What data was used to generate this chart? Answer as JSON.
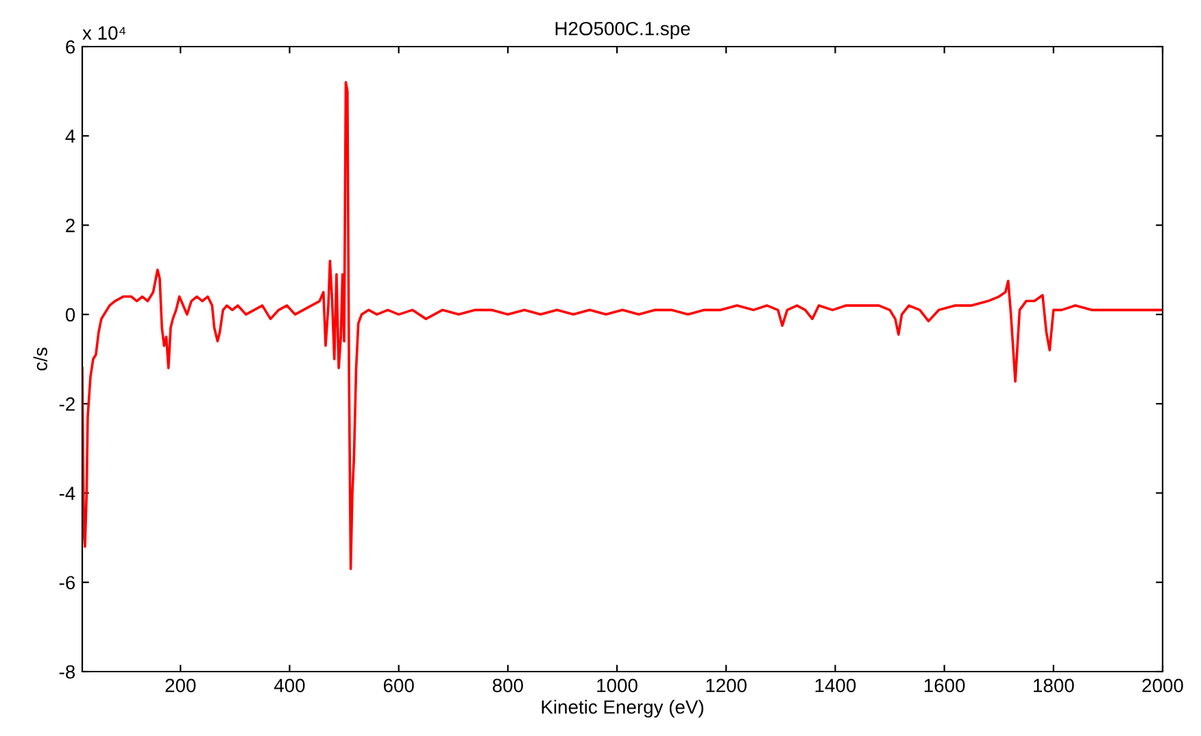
{
  "chart_data": {
    "type": "line",
    "title": "H2O500C.1.spe",
    "xlabel": "Kinetic Energy (eV)",
    "ylabel": "c/s",
    "annotations": [
      "x 10⁴"
    ],
    "xlim": [
      20,
      2000
    ],
    "xticks": [
      200,
      400,
      600,
      800,
      1000,
      1200,
      1400,
      1600,
      1800,
      2000
    ],
    "ylim": [
      -8,
      6
    ],
    "yticks": [
      -8,
      -6,
      -4,
      -2,
      0,
      2,
      4,
      6
    ],
    "grid": false,
    "legend": false,
    "marker": "none",
    "line_style": "solid",
    "series": [
      {
        "color": "#ff0000",
        "x": [
          20,
          23,
          25,
          28,
          30,
          35,
          40,
          45,
          50,
          55,
          60,
          70,
          80,
          95,
          110,
          120,
          130,
          140,
          150,
          158,
          162,
          166,
          170,
          174,
          178,
          182,
          186,
          192,
          198,
          205,
          212,
          220,
          230,
          240,
          250,
          258,
          262,
          268,
          272,
          278,
          285,
          295,
          305,
          320,
          335,
          350,
          365,
          380,
          395,
          410,
          425,
          440,
          455,
          462,
          466,
          471,
          474,
          478,
          482,
          486,
          490,
          494,
          497,
          500,
          503,
          506,
          509,
          512,
          515,
          518,
          522,
          526,
          532,
          545,
          560,
          580,
          600,
          625,
          650,
          680,
          710,
          740,
          770,
          800,
          830,
          860,
          890,
          920,
          950,
          980,
          1010,
          1040,
          1070,
          1100,
          1130,
          1160,
          1190,
          1220,
          1250,
          1275,
          1295,
          1303,
          1312,
          1330,
          1345,
          1358,
          1370,
          1395,
          1420,
          1450,
          1480,
          1500,
          1510,
          1516,
          1522,
          1535,
          1555,
          1571,
          1590,
          1620,
          1650,
          1680,
          1700,
          1712,
          1717,
          1722,
          1730,
          1738,
          1750,
          1765,
          1780,
          1787,
          1793,
          1800,
          1815,
          1840,
          1870,
          1900,
          1930,
          1960,
          2000
        ],
        "values": [
          -1.2,
          -4.9,
          -5.2,
          -4.0,
          -2.3,
          -1.4,
          -1.0,
          -0.9,
          -0.4,
          -0.1,
          0.0,
          0.2,
          0.3,
          0.4,
          0.4,
          0.3,
          0.4,
          0.3,
          0.5,
          1.0,
          0.8,
          -0.3,
          -0.7,
          -0.5,
          -1.2,
          -0.3,
          -0.1,
          0.1,
          0.4,
          0.2,
          0.0,
          0.3,
          0.4,
          0.3,
          0.4,
          0.2,
          -0.3,
          -0.6,
          -0.4,
          0.1,
          0.2,
          0.1,
          0.2,
          0.0,
          0.1,
          0.2,
          -0.1,
          0.1,
          0.2,
          0.0,
          0.1,
          0.2,
          0.3,
          0.5,
          -0.7,
          0.2,
          1.2,
          0.3,
          -1.0,
          0.9,
          -1.2,
          -0.5,
          0.9,
          -0.6,
          5.2,
          5.0,
          -1.5,
          -5.7,
          -4.0,
          -3.2,
          -1.2,
          -0.2,
          0.0,
          0.1,
          0.0,
          0.1,
          0.0,
          0.1,
          -0.1,
          0.1,
          0.0,
          0.1,
          0.1,
          0.0,
          0.1,
          0.0,
          0.1,
          0.0,
          0.1,
          0.0,
          0.1,
          0.0,
          0.1,
          0.1,
          0.0,
          0.1,
          0.1,
          0.2,
          0.1,
          0.2,
          0.1,
          -0.25,
          0.1,
          0.2,
          0.1,
          -0.1,
          0.2,
          0.1,
          0.2,
          0.2,
          0.2,
          0.1,
          -0.1,
          -0.45,
          0.0,
          0.2,
          0.1,
          -0.15,
          0.1,
          0.2,
          0.2,
          0.3,
          0.4,
          0.5,
          0.75,
          0.0,
          -1.5,
          0.1,
          0.3,
          0.3,
          0.43,
          -0.4,
          -0.8,
          0.1,
          0.1,
          0.2,
          0.1,
          0.1,
          0.1,
          0.1,
          0.1
        ]
      }
    ]
  }
}
